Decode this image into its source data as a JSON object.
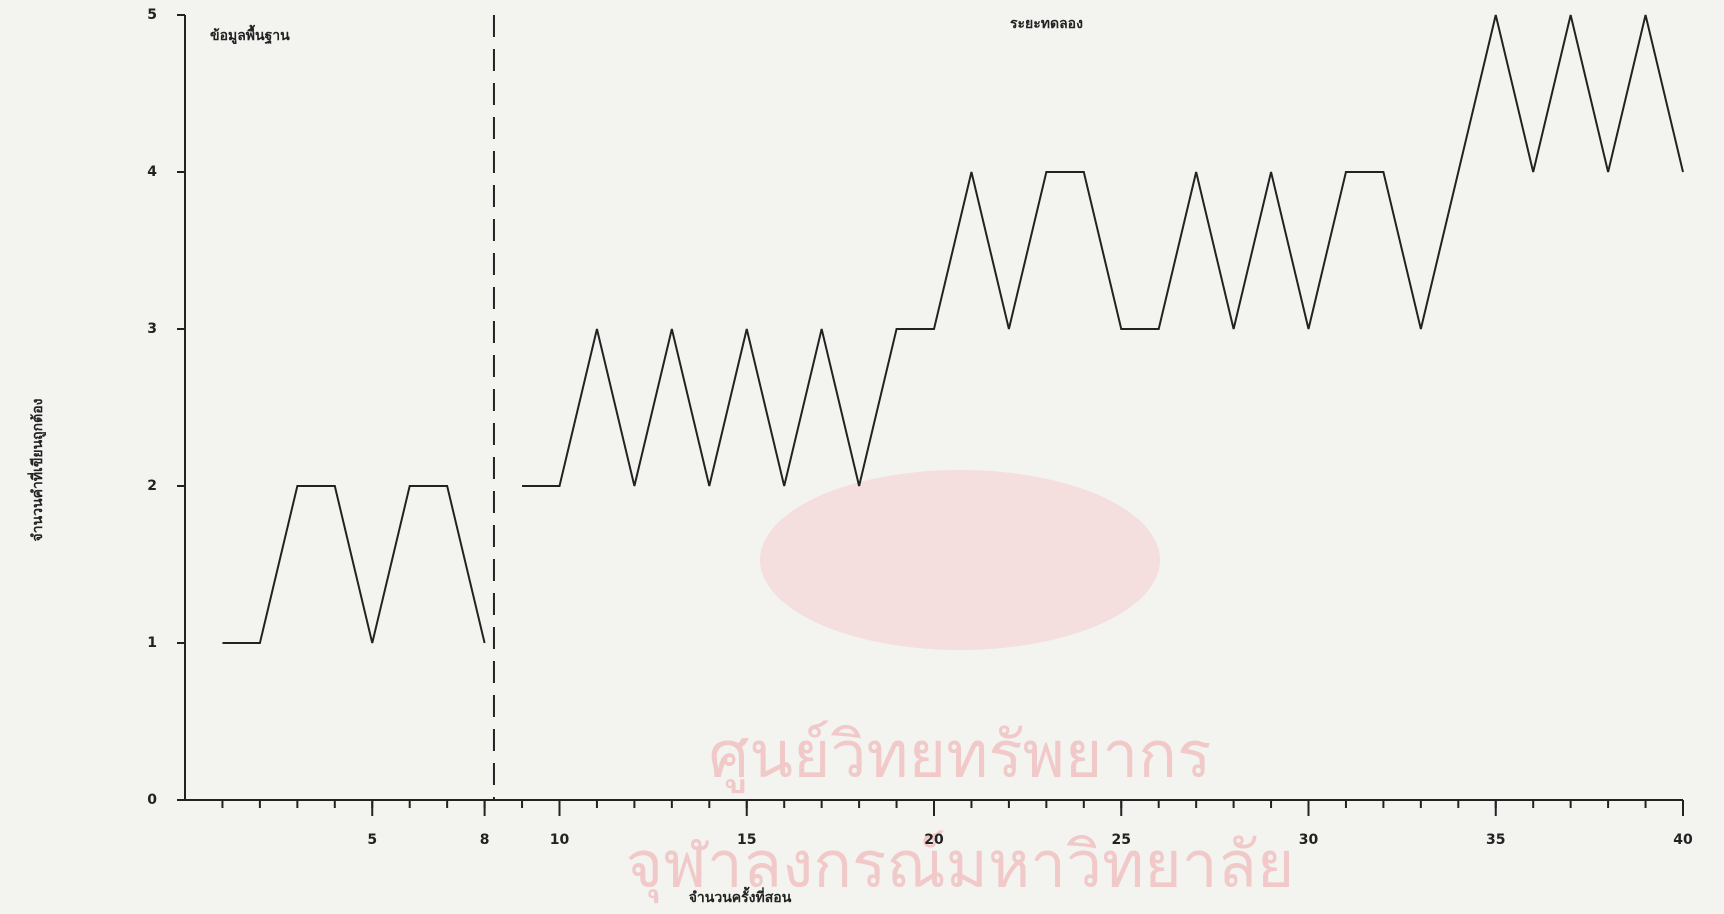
{
  "chart_data": {
    "type": "line",
    "x_label": "จำนวนครั้งที่สอน",
    "y_label": "จำนวนคำที่เขียนถูกต้อง",
    "phase_labels": [
      "ข้อมูลพื้นฐาน",
      "ระยะทดลอง"
    ],
    "phase_change_x": 8.25,
    "watermark": [
      "ศูนย์วิทยทรัพยากร",
      "จุฬาลงกรณ์มหาวิทยาลัย"
    ],
    "series": [
      {
        "color": "#222222",
        "x": [
          1,
          2,
          3,
          4,
          5,
          6,
          7,
          8
        ],
        "values": [
          1,
          1,
          2,
          2,
          1,
          2,
          2,
          1
        ]
      },
      {
        "color": "#222222",
        "x": [
          9,
          10,
          11,
          12,
          13,
          14,
          15,
          16,
          17,
          18,
          19,
          20,
          21,
          22,
          23,
          24,
          25,
          26,
          27,
          28,
          29,
          30,
          31,
          32,
          33,
          34,
          35,
          36,
          37,
          38,
          39,
          40
        ],
        "values": [
          2,
          2,
          3,
          2,
          3,
          2,
          3,
          2,
          3,
          2,
          3,
          3,
          4,
          3,
          4,
          4,
          3,
          3,
          4,
          3,
          4,
          3,
          4,
          4,
          3,
          4,
          5,
          4,
          5,
          4,
          5,
          4
        ]
      }
    ],
    "xlim": [
      0,
      40
    ],
    "ylim": [
      0,
      5
    ],
    "xticks": [
      5,
      8,
      10,
      15,
      20,
      25,
      30,
      35,
      40
    ],
    "xminorticks": [
      1,
      2,
      3,
      4,
      5,
      6,
      7,
      8,
      9,
      10,
      11,
      12,
      13,
      14,
      15,
      16,
      17,
      18,
      19,
      20,
      21,
      22,
      23,
      24,
      25,
      26,
      27,
      28,
      29,
      30,
      31,
      32,
      33,
      34,
      35,
      36,
      37,
      38,
      39,
      40
    ],
    "yticks": [
      0,
      1,
      2,
      3,
      4,
      5
    ]
  }
}
